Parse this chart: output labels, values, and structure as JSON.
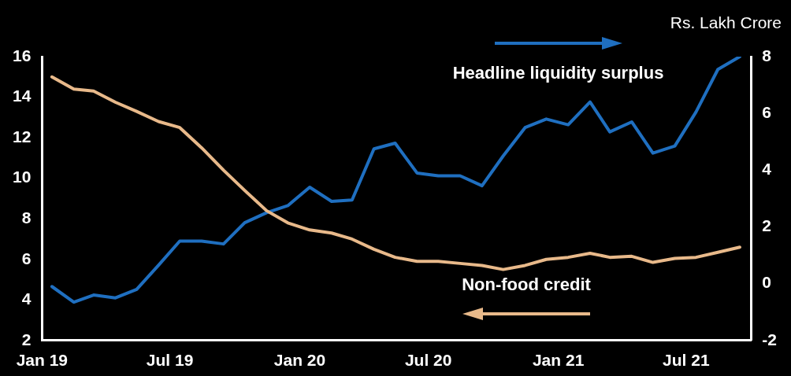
{
  "chart_data": {
    "type": "line",
    "x": [
      "2019-01-15",
      "2019-02-15",
      "2019-03-15",
      "2019-04-15",
      "2019-05-15",
      "2019-06-15",
      "2019-07-15",
      "2019-08-15",
      "2019-09-15",
      "2019-10-15",
      "2019-11-15",
      "2019-12-15",
      "2020-01-15",
      "2020-02-15",
      "2020-03-15",
      "2020-04-15",
      "2020-05-15",
      "2020-06-15",
      "2020-07-15",
      "2020-08-15",
      "2020-09-15",
      "2020-10-15",
      "2020-11-15",
      "2020-12-15",
      "2021-01-15",
      "2021-02-15",
      "2021-03-15",
      "2021-04-15",
      "2021-05-15",
      "2021-06-15",
      "2021-07-15",
      "2021-08-15",
      "2021-09-15"
    ],
    "series": [
      {
        "name": "Headline liquidity surplus",
        "color": "#1f6fc0",
        "axis": "y2",
        "values": [
          -0.1,
          -0.65,
          -0.4,
          -0.5,
          -0.2,
          0.65,
          1.5,
          1.5,
          1.4,
          2.15,
          2.5,
          2.75,
          3.4,
          2.9,
          2.95,
          4.75,
          4.95,
          3.9,
          3.8,
          3.8,
          3.45,
          4.5,
          5.5,
          5.8,
          5.6,
          6.4,
          5.35,
          5.7,
          4.6,
          4.85,
          6.05,
          7.55,
          8.0
        ]
      },
      {
        "name": "Non-food credit",
        "color": "#e8b98a",
        "values": [
          15.0,
          14.4,
          14.3,
          13.75,
          13.3,
          12.8,
          12.5,
          11.5,
          10.4,
          9.4,
          8.4,
          7.8,
          7.45,
          7.3,
          7.0,
          6.5,
          6.1,
          5.9,
          5.9,
          5.8,
          5.7,
          5.5,
          5.7,
          6.0,
          6.1,
          6.3,
          6.1,
          6.15,
          5.85,
          6.05,
          6.1,
          6.35,
          6.6
        ]
      }
    ],
    "xlim": [
      "2019-01-01",
      "2021-10-01"
    ],
    "xticks": [
      {
        "value": "2019-01-01",
        "label": "Jan 19"
      },
      {
        "value": "2019-07-01",
        "label": "Jul 19"
      },
      {
        "value": "2020-01-01",
        "label": "Jan 20"
      },
      {
        "value": "2020-07-01",
        "label": "Jul 20"
      },
      {
        "value": "2021-01-01",
        "label": "Jan 21"
      },
      {
        "value": "2021-07-01",
        "label": "Jul 21"
      }
    ],
    "ylim": [
      2,
      16
    ],
    "yticks": [
      2,
      4,
      6,
      8,
      10,
      12,
      14,
      16
    ],
    "y2lim": [
      -2,
      8
    ],
    "y2ticks": [
      -2,
      0,
      2,
      4,
      6,
      8
    ],
    "annotations": [
      "Rs. Lakh Crore"
    ],
    "legend": "top right",
    "grid": false,
    "marker": "none",
    "line_style": "solid"
  }
}
